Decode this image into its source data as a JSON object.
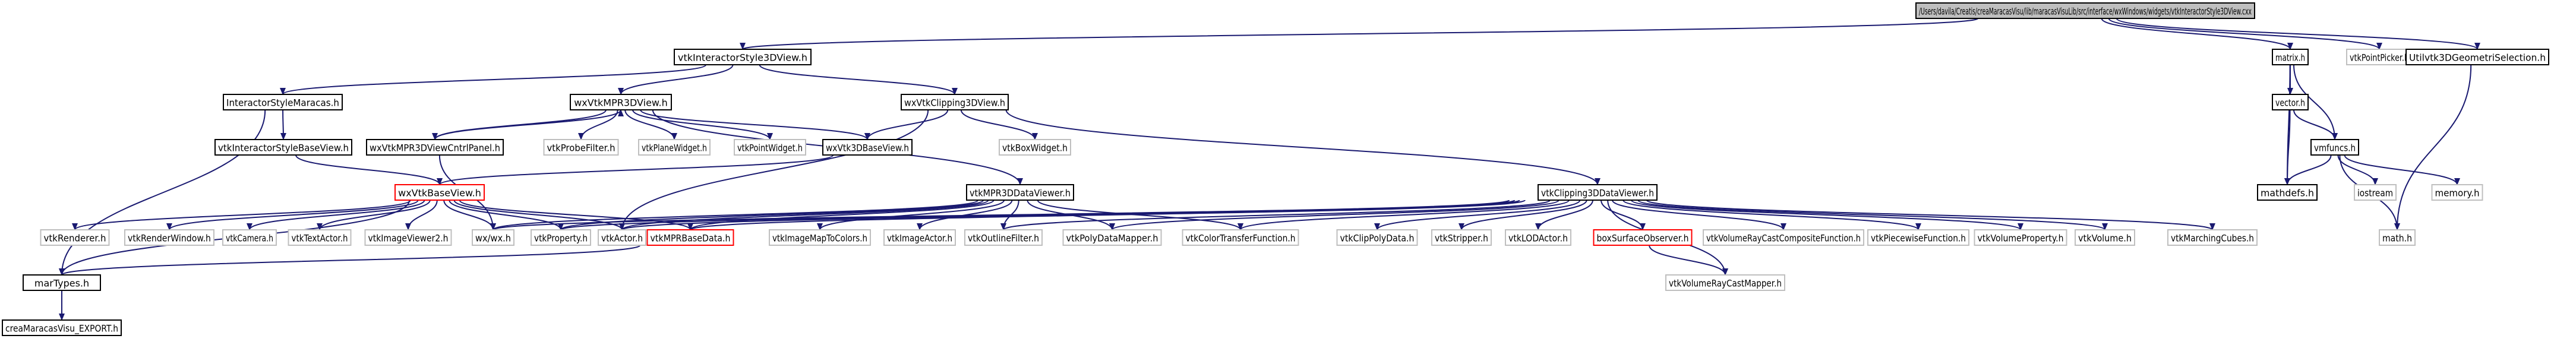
{
  "graph": {
    "title": "/Users/davila/Creatis/creaMaracasVisu/lib/maracasVisuLib/src/interface/wxWindows/widgets/vtkInteractorStyle3DView.cxx",
    "nodes": [
      {
        "id": "root",
        "label": "/Users/davila/Creatis/creaMaracasVisu/lib/maracasVisuLib/src/interface/wxWindows/widgets/vtkInteractorStyle3DView.cxx",
        "style": "root"
      },
      {
        "id": "is3dh",
        "label": "vtkInteractorStyle3DView.h",
        "style": "doc"
      },
      {
        "id": "matrix",
        "label": "matrix.h",
        "style": "doc"
      },
      {
        "id": "vpp",
        "label": "vtkPointPicker.h",
        "style": "ext"
      },
      {
        "id": "util",
        "label": "Utilvtk3DGeometriSelection.h",
        "style": "doc"
      },
      {
        "id": "ism",
        "label": "InteractorStyleMaracas.h",
        "style": "doc"
      },
      {
        "id": "mpr3d",
        "label": "wxVtkMPR3DView.h",
        "style": "doc"
      },
      {
        "id": "clip3d",
        "label": "wxVtkClipping3DView.h",
        "style": "doc"
      },
      {
        "id": "vector",
        "label": "vector.h",
        "style": "doc"
      },
      {
        "id": "vmfuncs",
        "label": "vmfuncs.h",
        "style": "doc"
      },
      {
        "id": "isbase",
        "label": "vtkInteractorStyleBaseView.h",
        "style": "doc"
      },
      {
        "id": "mprcntrl",
        "label": "wxVtkMPR3DViewCntrlPanel.h",
        "style": "doc"
      },
      {
        "id": "probe",
        "label": "vtkProbeFilter.h",
        "style": "ext"
      },
      {
        "id": "plane",
        "label": "vtkPlaneWidget.h",
        "style": "ext"
      },
      {
        "id": "pointw",
        "label": "vtkPointWidget.h",
        "style": "ext"
      },
      {
        "id": "vtk3dbase",
        "label": "wxVtk3DBaseView.h",
        "style": "doc"
      },
      {
        "id": "boxw",
        "label": "vtkBoxWidget.h",
        "style": "ext"
      },
      {
        "id": "mathdefs",
        "label": "mathdefs.h",
        "style": "doc"
      },
      {
        "id": "iostream",
        "label": "iostream",
        "style": "ext"
      },
      {
        "id": "memory",
        "label": "memory.h",
        "style": "ext"
      },
      {
        "id": "wxbase",
        "label": "wxVtkBaseView.h",
        "style": "red"
      },
      {
        "id": "mprdata",
        "label": "vtkMPR3DDataViewer.h",
        "style": "doc"
      },
      {
        "id": "clipdata",
        "label": "vtkClipping3DDataViewer.h",
        "style": "doc"
      },
      {
        "id": "renderer",
        "label": "vtkRenderer.h",
        "style": "ext"
      },
      {
        "id": "renwin",
        "label": "vtkRenderWindow.h",
        "style": "ext"
      },
      {
        "id": "camera",
        "label": "vtkCamera.h",
        "style": "ext"
      },
      {
        "id": "textactor",
        "label": "vtkTextActor.h",
        "style": "ext"
      },
      {
        "id": "imgview",
        "label": "vtkImageViewer2.h",
        "style": "ext"
      },
      {
        "id": "wx",
        "label": "wx/wx.h",
        "style": "ext"
      },
      {
        "id": "property",
        "label": "vtkProperty.h",
        "style": "ext"
      },
      {
        "id": "actor",
        "label": "vtkActor.h",
        "style": "ext"
      },
      {
        "id": "mprbasedata",
        "label": "vtkMPRBaseData.h",
        "style": "red"
      },
      {
        "id": "imgmap",
        "label": "vtkImageMapToColors.h",
        "style": "ext"
      },
      {
        "id": "imgactor",
        "label": "vtkImageActor.h",
        "style": "ext"
      },
      {
        "id": "outline",
        "label": "vtkOutlineFilter.h",
        "style": "ext"
      },
      {
        "id": "polymapper",
        "label": "vtkPolyDataMapper.h",
        "style": "ext"
      },
      {
        "id": "colortf",
        "label": "vtkColorTransferFunction.h",
        "style": "ext"
      },
      {
        "id": "clippoly",
        "label": "vtkClipPolyData.h",
        "style": "ext"
      },
      {
        "id": "stripper",
        "label": "vtkStripper.h",
        "style": "ext"
      },
      {
        "id": "lod",
        "label": "vtkLODActor.h",
        "style": "ext"
      },
      {
        "id": "boxsurf",
        "label": "boxSurfaceObserver.h",
        "style": "red"
      },
      {
        "id": "raycomp",
        "label": "vtkVolumeRayCastCompositeFunction.h",
        "style": "ext"
      },
      {
        "id": "piecewise",
        "label": "vtkPiecewiseFunction.h",
        "style": "ext"
      },
      {
        "id": "volprop",
        "label": "vtkVolumeProperty.h",
        "style": "ext"
      },
      {
        "id": "volume",
        "label": "vtkVolume.h",
        "style": "ext"
      },
      {
        "id": "marching",
        "label": "vtkMarchingCubes.h",
        "style": "ext"
      },
      {
        "id": "math",
        "label": "math.h",
        "style": "ext"
      },
      {
        "id": "martypes",
        "label": "marTypes.h",
        "style": "doc"
      },
      {
        "id": "raymapper",
        "label": "vtkVolumeRayCastMapper.h",
        "style": "ext"
      },
      {
        "id": "export",
        "label": "creaMaracasVisu_EXPORT.h",
        "style": "doc"
      }
    ],
    "edges": [
      [
        "root",
        "is3dh"
      ],
      [
        "root",
        "matrix"
      ],
      [
        "root",
        "vpp"
      ],
      [
        "root",
        "util"
      ],
      [
        "is3dh",
        "ism"
      ],
      [
        "is3dh",
        "mpr3d"
      ],
      [
        "is3dh",
        "clip3d"
      ],
      [
        "ism",
        "isbase"
      ],
      [
        "ism",
        "martypes"
      ],
      [
        "isbase",
        "wxbase"
      ],
      [
        "mpr3d",
        "mprcntrl"
      ],
      [
        "mpr3d",
        "probe"
      ],
      [
        "mpr3d",
        "plane"
      ],
      [
        "mpr3d",
        "pointw"
      ],
      [
        "mpr3d",
        "vtk3dbase"
      ],
      [
        "mpr3d",
        "mprdata"
      ],
      [
        "mprcntrl",
        "mpr3d"
      ],
      [
        "mprcntrl",
        "wx"
      ],
      [
        "clip3d",
        "vtk3dbase"
      ],
      [
        "clip3d",
        "boxw"
      ],
      [
        "clip3d",
        "clipdata"
      ],
      [
        "clip3d",
        "actor"
      ],
      [
        "vtk3dbase",
        "wxbase"
      ],
      [
        "wxbase",
        "renderer"
      ],
      [
        "wxbase",
        "renwin"
      ],
      [
        "wxbase",
        "camera"
      ],
      [
        "wxbase",
        "textactor"
      ],
      [
        "wxbase",
        "imgview"
      ],
      [
        "wxbase",
        "wx"
      ],
      [
        "wxbase",
        "property"
      ],
      [
        "wxbase",
        "actor"
      ],
      [
        "wxbase",
        "mprbasedata"
      ],
      [
        "wxbase",
        "martypes"
      ],
      [
        "mprdata",
        "wx"
      ],
      [
        "mprdata",
        "mprbasedata"
      ],
      [
        "mprdata",
        "imgmap"
      ],
      [
        "mprdata",
        "imgactor"
      ],
      [
        "mprdata",
        "outline"
      ],
      [
        "mprdata",
        "polymapper"
      ],
      [
        "mprdata",
        "colortf"
      ],
      [
        "mprdata",
        "actor"
      ],
      [
        "mprdata",
        "property"
      ],
      [
        "clipdata",
        "wx"
      ],
      [
        "clipdata",
        "mprbasedata"
      ],
      [
        "clipdata",
        "property"
      ],
      [
        "clipdata",
        "actor"
      ],
      [
        "clipdata",
        "outline"
      ],
      [
        "clipdata",
        "polymapper"
      ],
      [
        "clipdata",
        "colortf"
      ],
      [
        "clipdata",
        "clippoly"
      ],
      [
        "clipdata",
        "stripper"
      ],
      [
        "clipdata",
        "lod"
      ],
      [
        "clipdata",
        "boxsurf"
      ],
      [
        "clipdata",
        "raycomp"
      ],
      [
        "clipdata",
        "piecewise"
      ],
      [
        "clipdata",
        "volprop"
      ],
      [
        "clipdata",
        "volume"
      ],
      [
        "clipdata",
        "marching"
      ],
      [
        "clipdata",
        "raymapper"
      ],
      [
        "boxsurf",
        "raymapper"
      ],
      [
        "mprbasedata",
        "martypes"
      ],
      [
        "martypes",
        "export"
      ],
      [
        "matrix",
        "vector"
      ],
      [
        "matrix",
        "mathdefs"
      ],
      [
        "matrix",
        "vmfuncs"
      ],
      [
        "vector",
        "vmfuncs"
      ],
      [
        "vector",
        "mathdefs"
      ],
      [
        "vmfuncs",
        "mathdefs"
      ],
      [
        "vmfuncs",
        "iostream"
      ],
      [
        "vmfuncs",
        "memory"
      ],
      [
        "vmfuncs",
        "math"
      ],
      [
        "util",
        "math"
      ]
    ]
  },
  "colors": {
    "root_fill": "#bfbfbf",
    "doc_border": "#000000",
    "ext_border": "#bfbfbf",
    "red_border": "#ff0000",
    "edge": "#191970",
    "text": "#000000"
  }
}
